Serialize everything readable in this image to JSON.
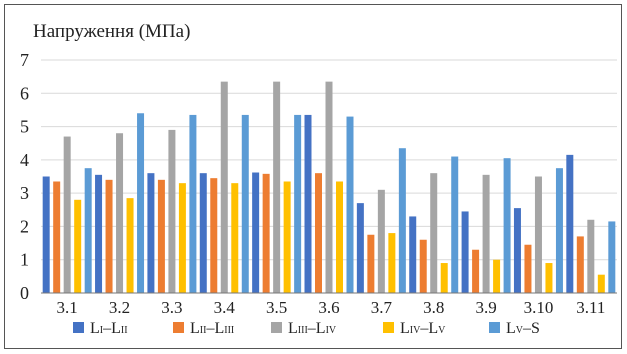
{
  "chart_data": {
    "type": "bar",
    "ylabel": "Напруження (МПа)",
    "ylim": [
      0,
      7
    ],
    "yticks": [
      "0",
      "1",
      "2",
      "3",
      "4",
      "5",
      "6",
      "7"
    ],
    "categories": [
      "3.1",
      "3.2",
      "3.3",
      "3.4",
      "3.5",
      "3.6",
      "3.7",
      "3.8",
      "3.9",
      "3.10",
      "3.11"
    ],
    "grid": "horizontal",
    "legend_position": "bottom",
    "series": [
      {
        "name": "LI–LII",
        "legend": {
          "a": "L",
          "as": "I",
          "b": "L",
          "bs": "II"
        },
        "color": "#4472C4",
        "values": [
          3.5,
          3.55,
          3.6,
          3.6,
          3.62,
          5.35,
          2.7,
          2.3,
          2.45,
          2.55,
          4.15
        ]
      },
      {
        "name": "LII–LIII",
        "legend": {
          "a": "L",
          "as": "II",
          "b": "L",
          "bs": "III"
        },
        "color": "#ED7D31",
        "values": [
          3.35,
          3.4,
          3.4,
          3.45,
          3.58,
          3.6,
          1.75,
          1.6,
          1.3,
          1.45,
          1.7
        ]
      },
      {
        "name": "LIII–LIV",
        "legend": {
          "a": "L",
          "as": "III",
          "b": "L",
          "bs": "IV"
        },
        "color": "#A5A5A5",
        "values": [
          4.7,
          4.8,
          4.9,
          6.35,
          6.35,
          6.35,
          3.1,
          3.6,
          3.55,
          3.5,
          2.2
        ]
      },
      {
        "name": "LIV–LV",
        "legend": {
          "a": "L",
          "as": "IV",
          "b": "L",
          "bs": "V"
        },
        "color": "#FFC000",
        "values": [
          2.8,
          2.85,
          3.3,
          3.3,
          3.35,
          3.35,
          1.8,
          0.9,
          1.0,
          0.9,
          0.55
        ]
      },
      {
        "name": "LV–S",
        "legend": {
          "a": "L",
          "as": "V",
          "b": "S",
          "bs": ""
        },
        "color": "#5B9BD5",
        "values": [
          3.75,
          5.4,
          5.35,
          5.35,
          5.35,
          5.3,
          4.35,
          4.1,
          4.05,
          3.75,
          2.15
        ]
      }
    ]
  }
}
